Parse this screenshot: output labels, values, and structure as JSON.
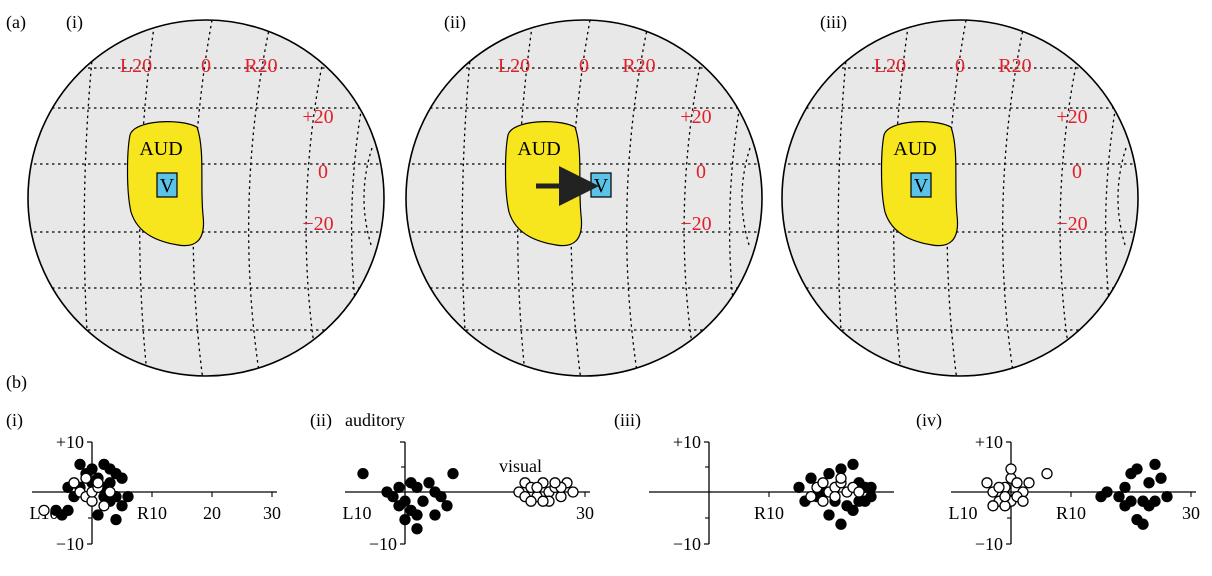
{
  "panel_a": {
    "label": "(a)",
    "subpanels": [
      {
        "label": "(i)",
        "coord_labels": {
          "left": "L20",
          "center": "0",
          "right": "R20",
          "up": "+20",
          "mid": "0",
          "down": "−20"
        },
        "aud_label": "AUD",
        "v_label": "V",
        "arrow": false
      },
      {
        "label": "(ii)",
        "coord_labels": {
          "left": "L20",
          "center": "0",
          "right": "R20",
          "up": "+20",
          "mid": "0",
          "down": "−20"
        },
        "aud_label": "AUD",
        "v_label": "V",
        "arrow": true
      },
      {
        "label": "(iii)",
        "coord_labels": {
          "left": "L20",
          "center": "0",
          "right": "R20",
          "up": "+20",
          "mid": "0",
          "down": "−20"
        },
        "aud_label": "AUD",
        "v_label": "V",
        "arrow": false
      }
    ],
    "colors": {
      "globe": "#e8e8e8",
      "aud": "#f7e51d",
      "v_box": "#5cc3e8",
      "coord_text": "#e0202a"
    }
  },
  "panel_b": {
    "label": "(b)",
    "chart_data": [
      {
        "type": "scatter",
        "label": "(i)",
        "annotation": "",
        "xticks": [
          "L10",
          "R10",
          "20",
          "30"
        ],
        "yticks": [
          "+10",
          "−10"
        ],
        "xlim": [
          -10,
          30
        ],
        "ylim": [
          -10,
          10
        ],
        "series": [
          {
            "fill": "filled",
            "points": [
              [
                -6,
                -4
              ],
              [
                -5,
                -5
              ],
              [
                -4,
                -4
              ],
              [
                -2,
                6
              ],
              [
                -1,
                4
              ],
              [
                0,
                5
              ],
              [
                1,
                3
              ],
              [
                2,
                6
              ],
              [
                3,
                2
              ],
              [
                4,
                4
              ],
              [
                5,
                3
              ],
              [
                -3,
                -1
              ],
              [
                2,
                -1
              ],
              [
                3,
                -2
              ],
              [
                4,
                -1
              ],
              [
                5,
                -3
              ],
              [
                1,
                -5
              ],
              [
                -2,
                1
              ],
              [
                0,
                2
              ],
              [
                2,
                1
              ],
              [
                4,
                -6
              ],
              [
                3,
                5
              ],
              [
                -4,
                1
              ],
              [
                6,
                -1
              ]
            ]
          },
          {
            "fill": "hollow",
            "points": [
              [
                -8,
                -4
              ],
              [
                -3,
                2
              ],
              [
                -2,
                0
              ],
              [
                -1,
                -1
              ],
              [
                0,
                -2
              ],
              [
                0,
                0
              ],
              [
                1,
                1
              ],
              [
                2,
                -3
              ],
              [
                1,
                2
              ],
              [
                -1,
                3
              ],
              [
                3,
                0
              ]
            ]
          }
        ]
      },
      {
        "type": "scatter",
        "label": "(ii)",
        "annotation": "auditory",
        "annotation2": "visual",
        "xticks": [
          "L10",
          "30"
        ],
        "yticks": [
          "−10"
        ],
        "xlim": [
          -10,
          30
        ],
        "ylim": [
          -10,
          10
        ],
        "series": [
          {
            "fill": "filled",
            "points": [
              [
                -7,
                4
              ],
              [
                -3,
                0
              ],
              [
                -1,
                1
              ],
              [
                0,
                -2
              ],
              [
                1,
                2
              ],
              [
                2,
                -5
              ],
              [
                3,
                -2
              ],
              [
                4,
                2
              ],
              [
                1,
                -4
              ],
              [
                2,
                -8
              ],
              [
                5,
                0
              ],
              [
                6,
                -1
              ],
              [
                8,
                4
              ],
              [
                -2,
                -1
              ],
              [
                0,
                -6
              ],
              [
                7,
                -3
              ],
              [
                -1,
                -3
              ],
              [
                2,
                1
              ],
              [
                5,
                -5
              ]
            ]
          },
          {
            "fill": "hollow",
            "points": [
              [
                19,
                0
              ],
              [
                20,
                2
              ],
              [
                21,
                1
              ],
              [
                22,
                -1
              ],
              [
                23,
                2
              ],
              [
                24,
                0
              ],
              [
                25,
                1
              ],
              [
                26,
                -1
              ],
              [
                27,
                2
              ],
              [
                22,
                1
              ],
              [
                24,
                -2
              ],
              [
                26,
                1
              ],
              [
                20,
                -1
              ],
              [
                23,
                -2
              ],
              [
                28,
                0
              ],
              [
                25,
                2
              ],
              [
                21,
                -2
              ]
            ]
          }
        ]
      },
      {
        "type": "scatter",
        "label": "(iii)",
        "annotation": "",
        "xticks": [
          "R10"
        ],
        "yticks": [
          "+10",
          "−10"
        ],
        "xlim": [
          -10,
          30
        ],
        "ylim": [
          -10,
          10
        ],
        "series": [
          {
            "fill": "filled",
            "points": [
              [
                15,
                1
              ],
              [
                17,
                3
              ],
              [
                20,
                4
              ],
              [
                22,
                5
              ],
              [
                24,
                6
              ],
              [
                25,
                2
              ],
              [
                26,
                1
              ],
              [
                27,
                -1
              ],
              [
                23,
                -3
              ],
              [
                21,
                -2
              ],
              [
                19,
                0
              ],
              [
                24,
                -4
              ],
              [
                26,
                -2
              ],
              [
                20,
                -5
              ],
              [
                22,
                -7
              ],
              [
                25,
                -2
              ],
              [
                18,
                -1
              ],
              [
                27,
                1
              ],
              [
                16,
                -2
              ]
            ]
          },
          {
            "fill": "hollow",
            "points": [
              [
                17,
                -1
              ],
              [
                18,
                1
              ],
              [
                19,
                2
              ],
              [
                20,
                0
              ],
              [
                21,
                1
              ],
              [
                22,
                2
              ],
              [
                23,
                0
              ],
              [
                21,
                -1
              ],
              [
                24,
                1
              ],
              [
                19,
                -2
              ],
              [
                25,
                0
              ],
              [
                22,
                3
              ]
            ]
          }
        ]
      },
      {
        "type": "scatter",
        "label": "(iv)",
        "annotation": "",
        "xticks": [
          "L10",
          "R10",
          "30"
        ],
        "yticks": [
          "+10",
          "−10"
        ],
        "xlim": [
          -10,
          30
        ],
        "ylim": [
          -10,
          10
        ],
        "series": [
          {
            "fill": "filled",
            "points": [
              [
                15,
                -1
              ],
              [
                16,
                0
              ],
              [
                18,
                -1
              ],
              [
                19,
                1
              ],
              [
                20,
                4
              ],
              [
                21,
                5
              ],
              [
                22,
                -2
              ],
              [
                23,
                -3
              ],
              [
                21,
                -6
              ],
              [
                22,
                -7
              ],
              [
                24,
                -2
              ],
              [
                25,
                3
              ],
              [
                26,
                -1
              ],
              [
                24,
                6
              ],
              [
                20,
                -2
              ],
              [
                23,
                2
              ],
              [
                19,
                -3
              ]
            ]
          },
          {
            "fill": "hollow",
            "points": [
              [
                -4,
                2
              ],
              [
                -3,
                0
              ],
              [
                -2,
                -2
              ],
              [
                -1,
                1
              ],
              [
                0,
                3
              ],
              [
                1,
                2
              ],
              [
                2,
                0
              ],
              [
                0,
                -2
              ],
              [
                -2,
                1
              ],
              [
                1,
                -1
              ],
              [
                3,
                2
              ],
              [
                -1,
                -3
              ],
              [
                0,
                5
              ],
              [
                6,
                4
              ],
              [
                -3,
                -3
              ],
              [
                2,
                -2
              ],
              [
                -1,
                -1
              ]
            ]
          }
        ]
      }
    ]
  }
}
